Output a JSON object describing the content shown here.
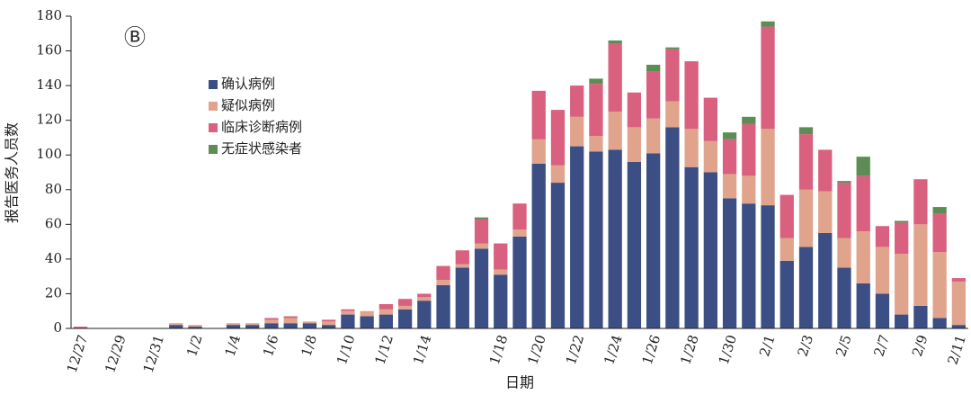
{
  "chart_data": {
    "type": "stacked_bar",
    "annotation": "Ⓑ",
    "xlabel": "日期",
    "ylabel": "报告医务人员数",
    "categories": [
      "12/27",
      null,
      "12/29",
      null,
      "12/31",
      null,
      "1/2",
      null,
      "1/4",
      null,
      "1/6",
      null,
      "1/8",
      null,
      "1/10",
      null,
      "1/12",
      null,
      "1/14",
      null,
      null,
      null,
      "1/18",
      null,
      "1/20",
      null,
      "1/22",
      null,
      "1/24",
      null,
      "1/26",
      null,
      "1/28",
      null,
      "1/30",
      null,
      "2/1",
      null,
      "2/3",
      null,
      "2/5",
      null,
      "2/7",
      null,
      "2/9",
      null,
      "2/11"
    ],
    "series": [
      {
        "name": "确认病例",
        "color": "#3b4f84",
        "values": [
          0,
          0,
          0,
          0,
          0,
          2,
          1,
          0,
          2,
          2,
          3,
          3,
          3,
          2,
          8,
          7,
          8,
          11,
          16,
          25,
          35,
          46,
          31,
          53,
          95,
          84,
          105,
          102,
          103,
          96,
          101,
          116,
          93,
          90,
          75,
          72,
          71,
          39,
          47,
          55,
          35,
          26,
          20,
          8,
          13,
          6,
          2
        ]
      },
      {
        "name": "疑似病例",
        "color": "#e0a48c",
        "values": [
          0,
          0,
          0,
          0,
          0,
          1,
          1,
          0,
          1,
          1,
          2,
          3,
          1,
          2,
          2,
          3,
          3,
          2,
          2,
          3,
          2,
          3,
          3,
          4,
          14,
          10,
          17,
          9,
          22,
          20,
          20,
          15,
          22,
          18,
          14,
          16,
          44,
          13,
          33,
          24,
          17,
          30,
          27,
          35,
          47,
          38,
          25
        ]
      },
      {
        "name": "临床诊断病例",
        "color": "#d9607e",
        "values": [
          1,
          0,
          0,
          0,
          0,
          0,
          0,
          0,
          0,
          0,
          1,
          1,
          0,
          1,
          1,
          0,
          3,
          4,
          2,
          8,
          8,
          14,
          15,
          15,
          28,
          32,
          18,
          30,
          39,
          20,
          27,
          30,
          39,
          25,
          20,
          30,
          59,
          25,
          32,
          24,
          32,
          32,
          12,
          18,
          26,
          22,
          2
        ]
      },
      {
        "name": "无症状感染者",
        "color": "#5e8c55",
        "values": [
          0,
          0,
          0,
          0,
          0,
          0,
          0,
          0,
          0,
          0,
          0,
          0,
          0,
          0,
          0,
          0,
          0,
          0,
          0,
          0,
          0,
          1,
          0,
          0,
          0,
          0,
          0,
          3,
          2,
          0,
          4,
          1,
          0,
          0,
          4,
          4,
          3,
          0,
          4,
          0,
          1,
          11,
          0,
          1,
          0,
          4,
          0
        ]
      }
    ],
    "ylim": [
      0,
      180
    ],
    "yticks": [
      0,
      20,
      40,
      60,
      80,
      100,
      120,
      140,
      160,
      180
    ],
    "grid": false,
    "legend": "upper left"
  }
}
